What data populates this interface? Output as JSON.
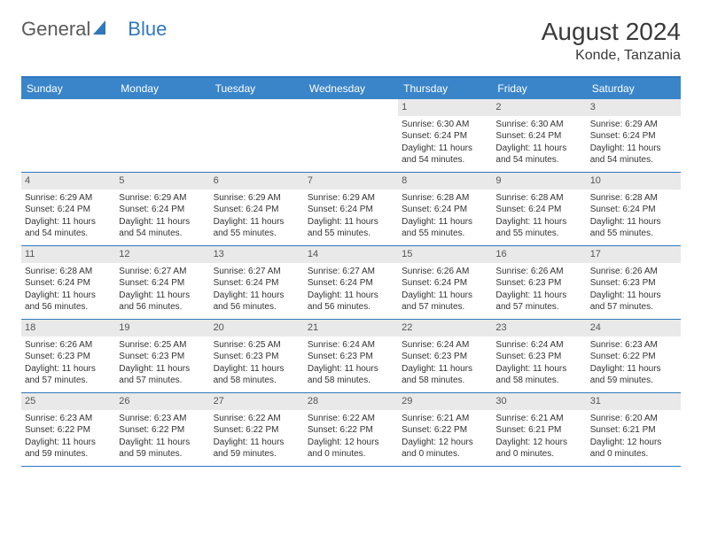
{
  "brand": {
    "part1": "General",
    "part2": "Blue"
  },
  "title": "August 2024",
  "location": "Konde, Tanzania",
  "colors": {
    "header_bar": "#3a85c9",
    "border": "#2f78bd",
    "daynum_bg": "#e9e9e9",
    "text": "#333333"
  },
  "dow": [
    "Sunday",
    "Monday",
    "Tuesday",
    "Wednesday",
    "Thursday",
    "Friday",
    "Saturday"
  ],
  "weeks": [
    [
      {
        "n": "",
        "sr": "",
        "ss": "",
        "dl": ""
      },
      {
        "n": "",
        "sr": "",
        "ss": "",
        "dl": ""
      },
      {
        "n": "",
        "sr": "",
        "ss": "",
        "dl": ""
      },
      {
        "n": "",
        "sr": "",
        "ss": "",
        "dl": ""
      },
      {
        "n": "1",
        "sr": "Sunrise: 6:30 AM",
        "ss": "Sunset: 6:24 PM",
        "dl": "Daylight: 11 hours and 54 minutes."
      },
      {
        "n": "2",
        "sr": "Sunrise: 6:30 AM",
        "ss": "Sunset: 6:24 PM",
        "dl": "Daylight: 11 hours and 54 minutes."
      },
      {
        "n": "3",
        "sr": "Sunrise: 6:29 AM",
        "ss": "Sunset: 6:24 PM",
        "dl": "Daylight: 11 hours and 54 minutes."
      }
    ],
    [
      {
        "n": "4",
        "sr": "Sunrise: 6:29 AM",
        "ss": "Sunset: 6:24 PM",
        "dl": "Daylight: 11 hours and 54 minutes."
      },
      {
        "n": "5",
        "sr": "Sunrise: 6:29 AM",
        "ss": "Sunset: 6:24 PM",
        "dl": "Daylight: 11 hours and 54 minutes."
      },
      {
        "n": "6",
        "sr": "Sunrise: 6:29 AM",
        "ss": "Sunset: 6:24 PM",
        "dl": "Daylight: 11 hours and 55 minutes."
      },
      {
        "n": "7",
        "sr": "Sunrise: 6:29 AM",
        "ss": "Sunset: 6:24 PM",
        "dl": "Daylight: 11 hours and 55 minutes."
      },
      {
        "n": "8",
        "sr": "Sunrise: 6:28 AM",
        "ss": "Sunset: 6:24 PM",
        "dl": "Daylight: 11 hours and 55 minutes."
      },
      {
        "n": "9",
        "sr": "Sunrise: 6:28 AM",
        "ss": "Sunset: 6:24 PM",
        "dl": "Daylight: 11 hours and 55 minutes."
      },
      {
        "n": "10",
        "sr": "Sunrise: 6:28 AM",
        "ss": "Sunset: 6:24 PM",
        "dl": "Daylight: 11 hours and 55 minutes."
      }
    ],
    [
      {
        "n": "11",
        "sr": "Sunrise: 6:28 AM",
        "ss": "Sunset: 6:24 PM",
        "dl": "Daylight: 11 hours and 56 minutes."
      },
      {
        "n": "12",
        "sr": "Sunrise: 6:27 AM",
        "ss": "Sunset: 6:24 PM",
        "dl": "Daylight: 11 hours and 56 minutes."
      },
      {
        "n": "13",
        "sr": "Sunrise: 6:27 AM",
        "ss": "Sunset: 6:24 PM",
        "dl": "Daylight: 11 hours and 56 minutes."
      },
      {
        "n": "14",
        "sr": "Sunrise: 6:27 AM",
        "ss": "Sunset: 6:24 PM",
        "dl": "Daylight: 11 hours and 56 minutes."
      },
      {
        "n": "15",
        "sr": "Sunrise: 6:26 AM",
        "ss": "Sunset: 6:24 PM",
        "dl": "Daylight: 11 hours and 57 minutes."
      },
      {
        "n": "16",
        "sr": "Sunrise: 6:26 AM",
        "ss": "Sunset: 6:23 PM",
        "dl": "Daylight: 11 hours and 57 minutes."
      },
      {
        "n": "17",
        "sr": "Sunrise: 6:26 AM",
        "ss": "Sunset: 6:23 PM",
        "dl": "Daylight: 11 hours and 57 minutes."
      }
    ],
    [
      {
        "n": "18",
        "sr": "Sunrise: 6:26 AM",
        "ss": "Sunset: 6:23 PM",
        "dl": "Daylight: 11 hours and 57 minutes."
      },
      {
        "n": "19",
        "sr": "Sunrise: 6:25 AM",
        "ss": "Sunset: 6:23 PM",
        "dl": "Daylight: 11 hours and 57 minutes."
      },
      {
        "n": "20",
        "sr": "Sunrise: 6:25 AM",
        "ss": "Sunset: 6:23 PM",
        "dl": "Daylight: 11 hours and 58 minutes."
      },
      {
        "n": "21",
        "sr": "Sunrise: 6:24 AM",
        "ss": "Sunset: 6:23 PM",
        "dl": "Daylight: 11 hours and 58 minutes."
      },
      {
        "n": "22",
        "sr": "Sunrise: 6:24 AM",
        "ss": "Sunset: 6:23 PM",
        "dl": "Daylight: 11 hours and 58 minutes."
      },
      {
        "n": "23",
        "sr": "Sunrise: 6:24 AM",
        "ss": "Sunset: 6:23 PM",
        "dl": "Daylight: 11 hours and 58 minutes."
      },
      {
        "n": "24",
        "sr": "Sunrise: 6:23 AM",
        "ss": "Sunset: 6:22 PM",
        "dl": "Daylight: 11 hours and 59 minutes."
      }
    ],
    [
      {
        "n": "25",
        "sr": "Sunrise: 6:23 AM",
        "ss": "Sunset: 6:22 PM",
        "dl": "Daylight: 11 hours and 59 minutes."
      },
      {
        "n": "26",
        "sr": "Sunrise: 6:23 AM",
        "ss": "Sunset: 6:22 PM",
        "dl": "Daylight: 11 hours and 59 minutes."
      },
      {
        "n": "27",
        "sr": "Sunrise: 6:22 AM",
        "ss": "Sunset: 6:22 PM",
        "dl": "Daylight: 11 hours and 59 minutes."
      },
      {
        "n": "28",
        "sr": "Sunrise: 6:22 AM",
        "ss": "Sunset: 6:22 PM",
        "dl": "Daylight: 12 hours and 0 minutes."
      },
      {
        "n": "29",
        "sr": "Sunrise: 6:21 AM",
        "ss": "Sunset: 6:22 PM",
        "dl": "Daylight: 12 hours and 0 minutes."
      },
      {
        "n": "30",
        "sr": "Sunrise: 6:21 AM",
        "ss": "Sunset: 6:21 PM",
        "dl": "Daylight: 12 hours and 0 minutes."
      },
      {
        "n": "31",
        "sr": "Sunrise: 6:20 AM",
        "ss": "Sunset: 6:21 PM",
        "dl": "Daylight: 12 hours and 0 minutes."
      }
    ]
  ]
}
